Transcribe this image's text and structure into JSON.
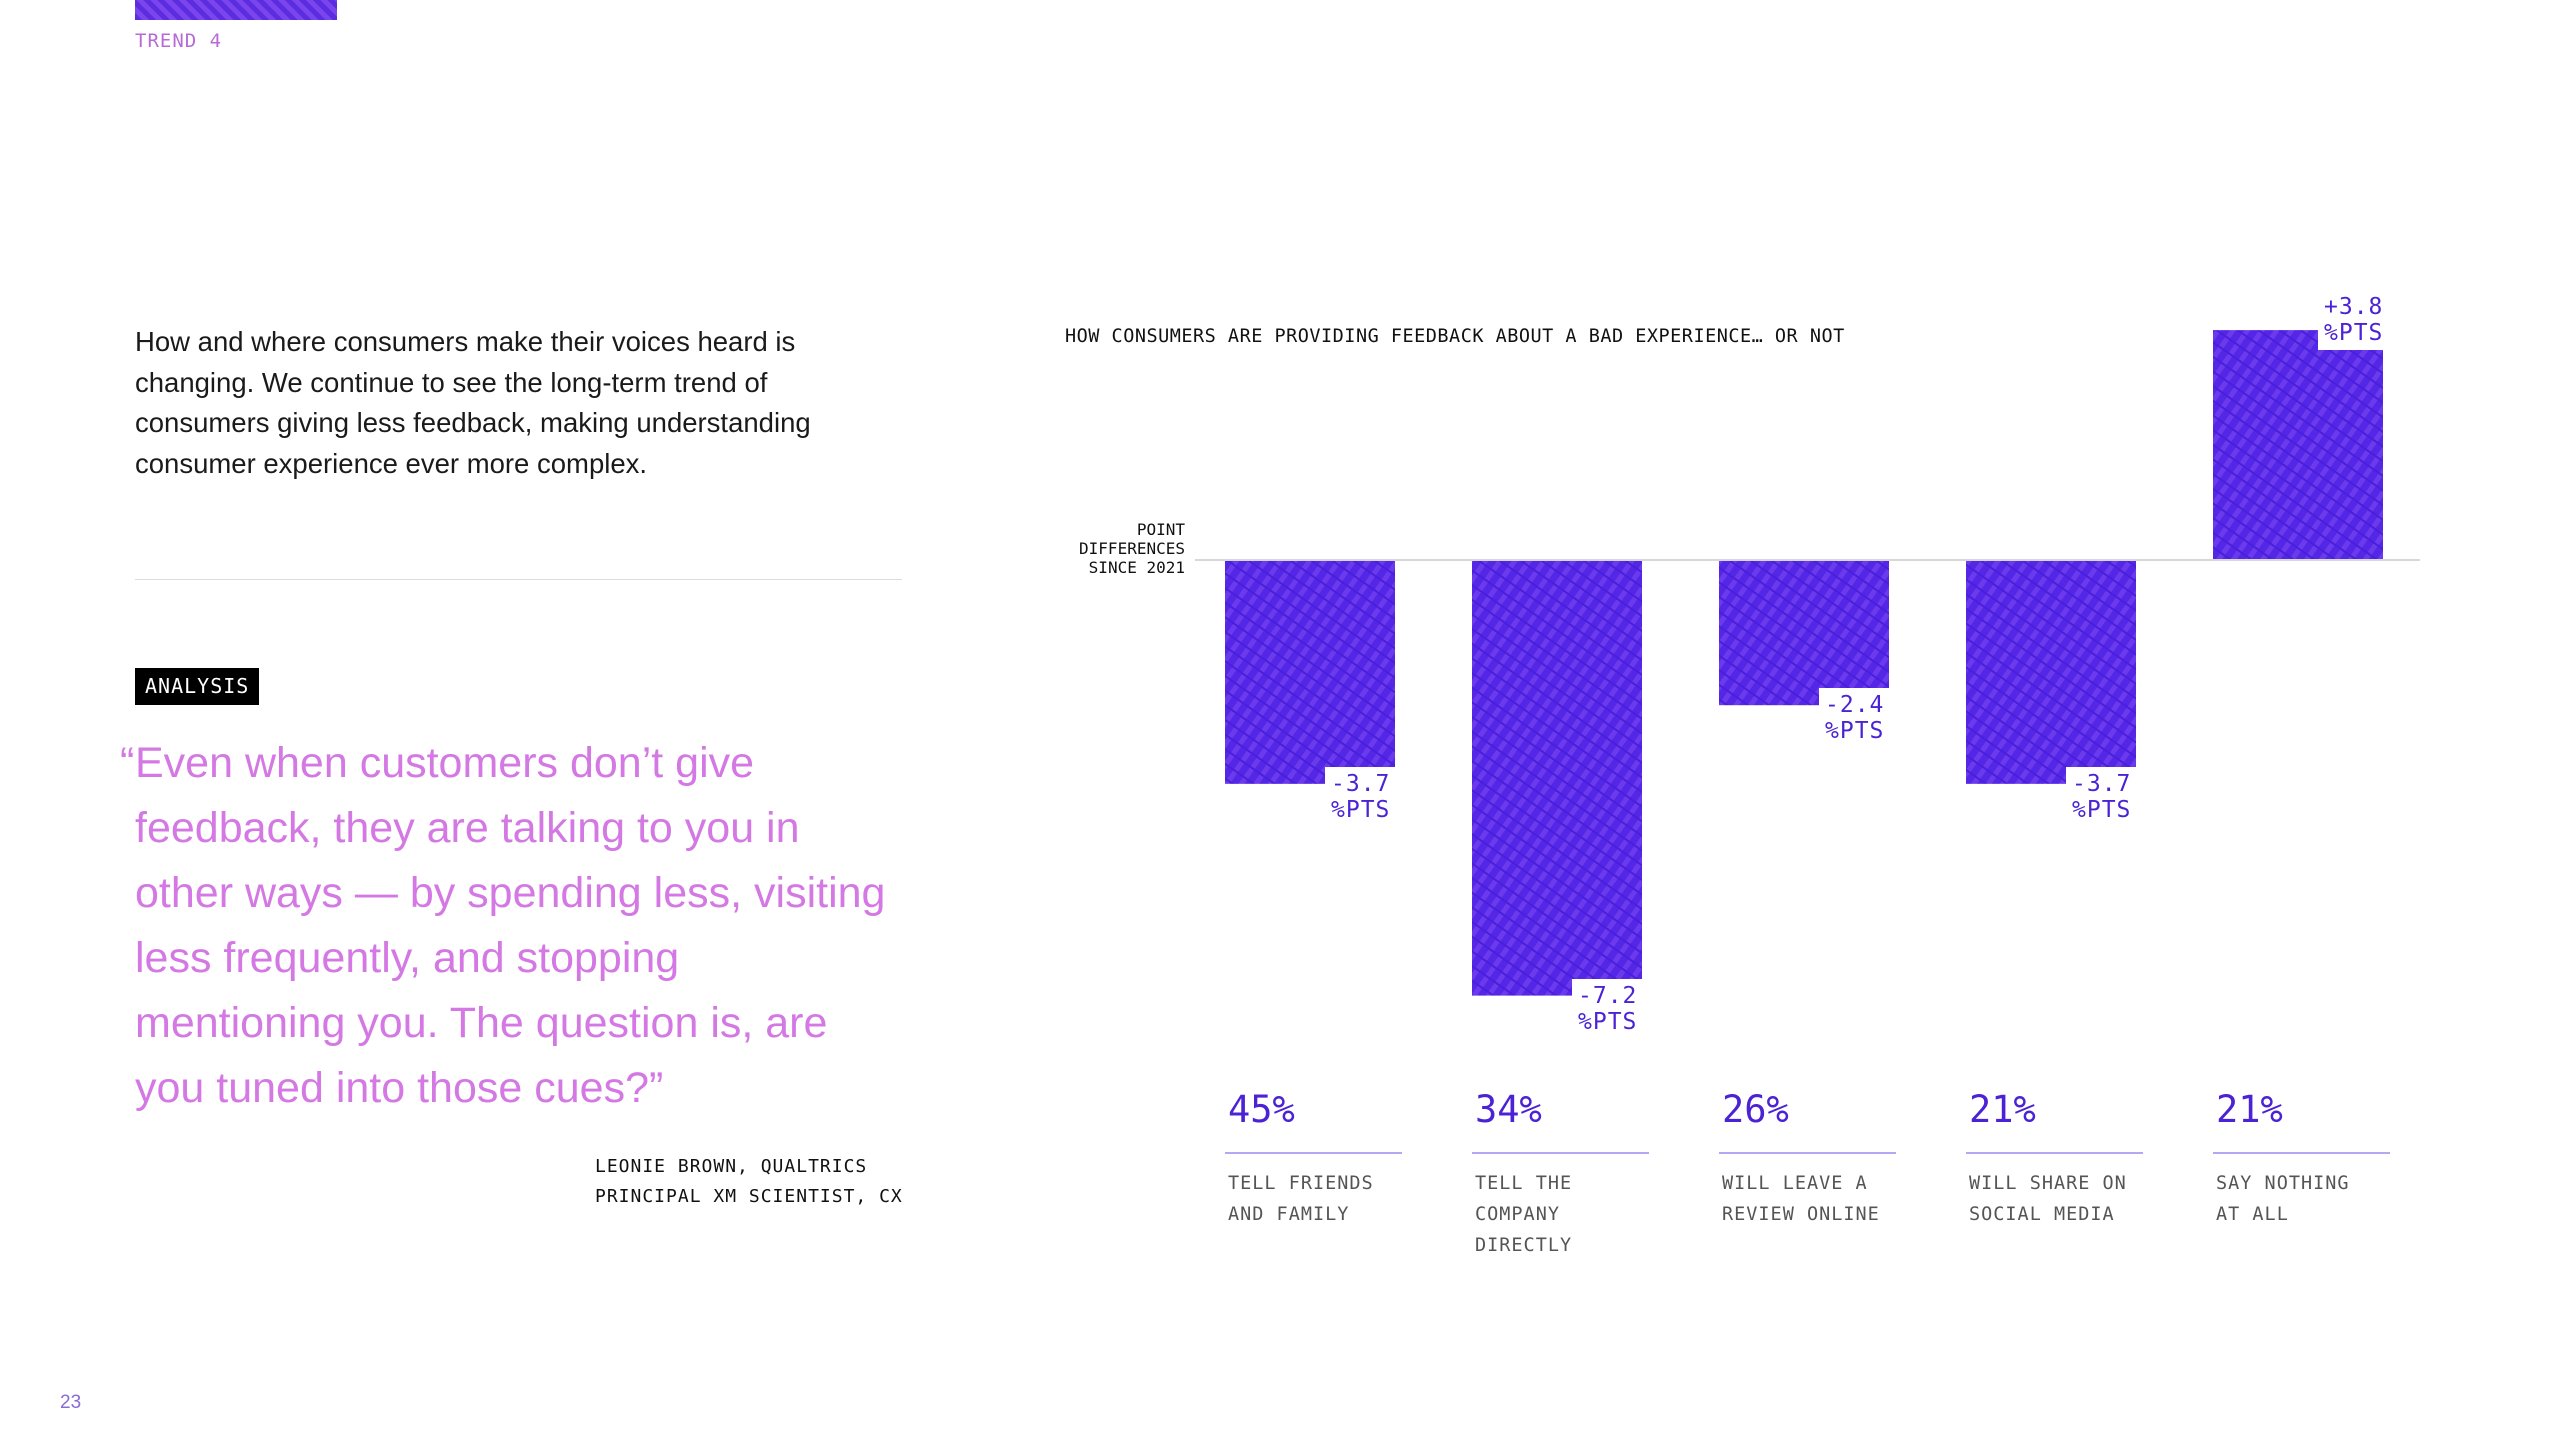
{
  "trend_label": "TREND 4",
  "intro": "How and where consumers make their voices heard is changing. We continue to see the long-term trend of consumers giving less feedback, making understanding consumer experience ever more complex.",
  "analysis_badge": "ANALYSIS",
  "quote": {
    "open_mark": "“",
    "text": "Even when customers don’t give feedback, they are talking to you in other ways — by spending less, visiting less frequently, and stopping mentioning you. The question is, are you tuned into those cues?”"
  },
  "attribution": {
    "line1": "LEONIE BROWN, QUALTRICS",
    "line2": "PRINCIPAL XM SCIENTIST, CX"
  },
  "page_number": "23",
  "colors": {
    "bar": "#5427e6",
    "bar_texture": "#7b4bee",
    "label": "#4b23d4",
    "quote": "#d479e4"
  },
  "chart_data": {
    "type": "bar",
    "title": "HOW CONSUMERS ARE PROVIDING FEEDBACK ABOUT A BAD EXPERIENCE… OR NOT",
    "ylabel": "POINT DIFFERENCES SINCE 2021",
    "categories": [
      "TELL FRIENDS AND FAMILY",
      "TELL THE COMPANY DIRECTLY",
      "WILL LEAVE A REVIEW ONLINE",
      "WILL SHARE ON SOCIAL MEDIA",
      "SAY NOTHING AT ALL"
    ],
    "series": [
      {
        "values": [
          -3.7,
          -7.2,
          -2.4,
          -3.7,
          3.8
        ]
      }
    ],
    "data_labels": [
      "-3.7 %PTS",
      "-7.2 %PTS",
      "-2.4 %PTS",
      "-3.7 %PTS",
      "+3.8 %PTS"
    ],
    "current_percent": [
      "45%",
      "34%",
      "26%",
      "21%",
      "21%"
    ],
    "ylim": [
      -7.2,
      3.8
    ],
    "grid": false,
    "legend": "none"
  }
}
